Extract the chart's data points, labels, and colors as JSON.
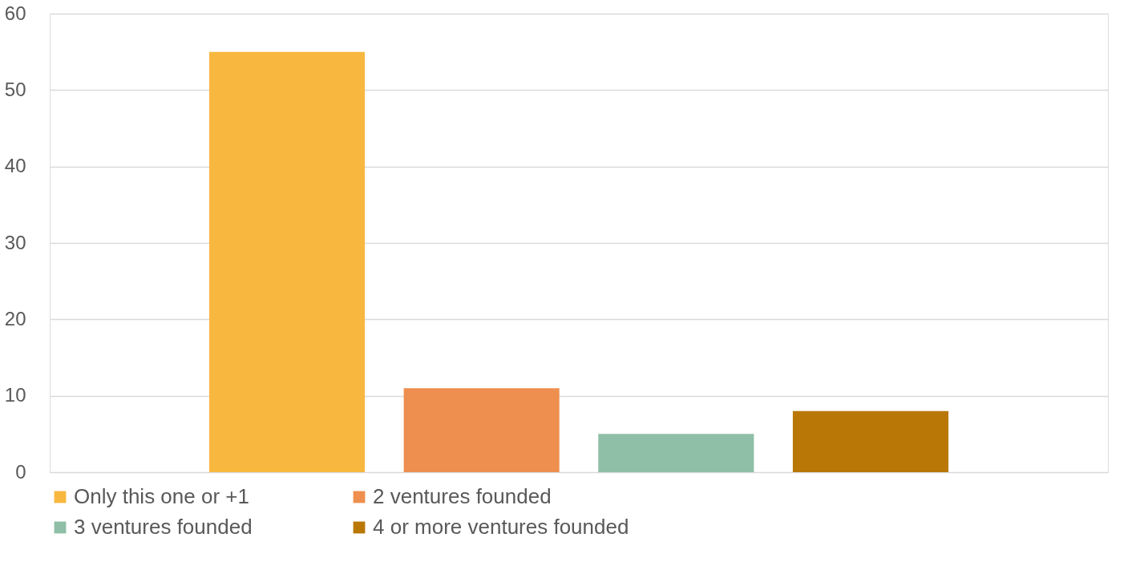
{
  "chart_data": {
    "type": "bar",
    "categories": [
      null
    ],
    "series": [
      {
        "name": "Only this one or +1",
        "color": "#f8b73e",
        "values": [
          55
        ]
      },
      {
        "name": "2 ventures founded",
        "color": "#ee8f4f",
        "values": [
          11
        ]
      },
      {
        "name": "3 ventures founded",
        "color": "#8fbfa7",
        "values": [
          5
        ]
      },
      {
        "name": "4 or more ventures founded",
        "color": "#b97705",
        "values": [
          8
        ]
      }
    ],
    "ylim": [
      0,
      60
    ],
    "yticks": [
      0,
      10,
      20,
      30,
      40,
      50,
      60
    ],
    "grid": "y",
    "legend": "bottom",
    "tick_labels": "y"
  }
}
